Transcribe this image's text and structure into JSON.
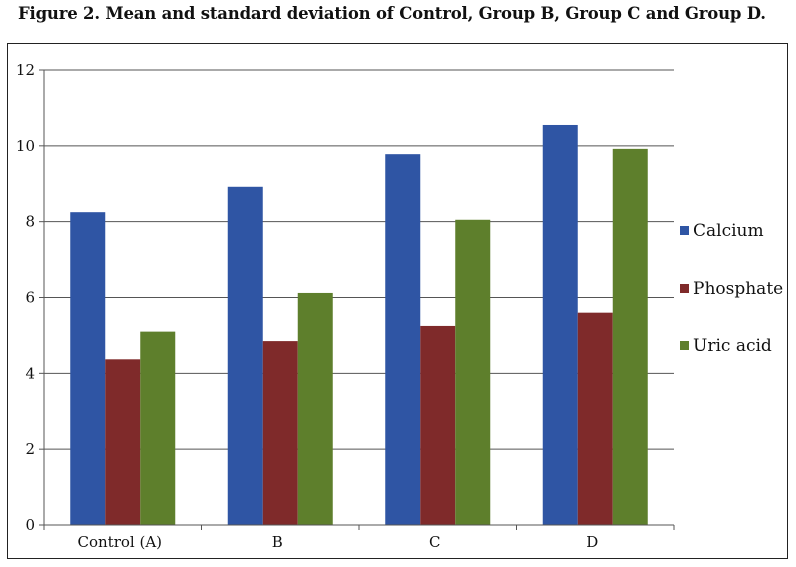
{
  "caption": "Figure 2. Mean and standard deviation of Control, Group B, Group C and Group D.",
  "chart_data": {
    "type": "bar",
    "categories": [
      "Control (A)",
      "B",
      "C",
      "D"
    ],
    "series": [
      {
        "name": "Calcium",
        "values": [
          8.25,
          8.92,
          9.78,
          10.55
        ],
        "color": "#2f55a4"
      },
      {
        "name": "Phosphate",
        "values": [
          4.37,
          4.85,
          5.25,
          5.6
        ],
        "color": "#7f2a2a"
      },
      {
        "name": "Uric acid",
        "values": [
          5.1,
          6.12,
          8.05,
          9.92
        ],
        "color": "#5e7f2c"
      }
    ],
    "ylim": [
      0,
      12
    ],
    "yticks": [
      "0",
      "2",
      "4",
      "6",
      "8",
      "10",
      "12"
    ],
    "grid": true,
    "legend_position": "right"
  }
}
